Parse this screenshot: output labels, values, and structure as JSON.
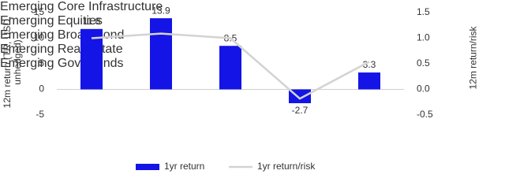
{
  "chart_data": {
    "type": "bar",
    "y_label": "12m return (TR, USD, unhedged)",
    "y2_label": "12m return/risk",
    "categories": [
      "Emerging Core Infrastructure",
      "Emerging Equities",
      "Emerging Broad Bond",
      "Emerging Real Estate",
      "Emerging Govt Bonds"
    ],
    "series": [
      {
        "name": "1yr return",
        "type": "bar",
        "color": "#1414e6",
        "values": [
          11.8,
          13.9,
          8.5,
          -2.7,
          3.3
        ]
      },
      {
        "name": "1yr return/risk",
        "type": "line",
        "axis": "y2",
        "color": "#d3d3d3",
        "values": [
          1.0,
          1.09,
          1.0,
          -0.18,
          0.54
        ]
      }
    ],
    "ylim": [
      -5,
      15
    ],
    "yticks": [
      -5,
      0,
      5,
      10,
      15
    ],
    "y2lim": [
      -0.5,
      1.5
    ],
    "y2ticks": [
      -0.5,
      {
        "value": 0,
        "label": "0.0"
      },
      0.5,
      {
        "value": 1,
        "label": "1.0"
      },
      1.5
    ],
    "legend": "bottom"
  }
}
